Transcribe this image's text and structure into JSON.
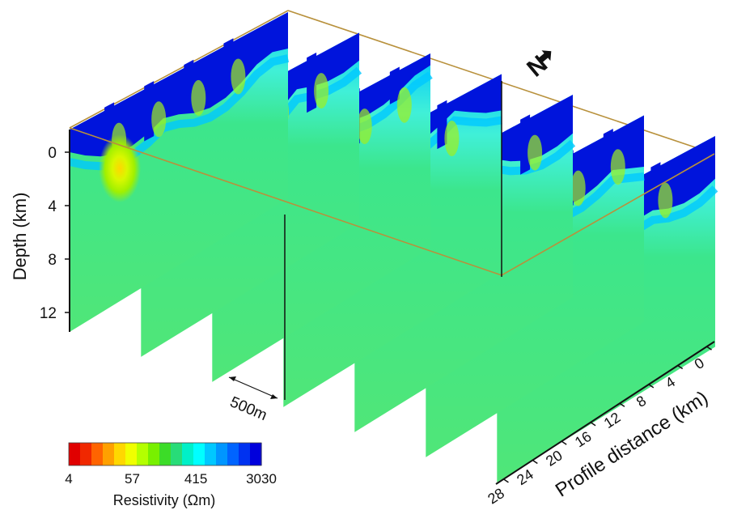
{
  "figure": {
    "north_label": "N",
    "depth_axis": {
      "label": "Depth (km)",
      "ticks": [
        "0",
        "4",
        "8",
        "12"
      ]
    },
    "profile_axis": {
      "label": "Profile distance (km)",
      "ticks": [
        "0",
        "4",
        "8",
        "12",
        "16",
        "20",
        "24",
        "28"
      ]
    },
    "scale_bar": {
      "label": "500m"
    },
    "colorbar": {
      "title": "Resistivity (Ωm)",
      "tick_labels": [
        "4",
        "57",
        "415",
        "3030"
      ],
      "colors": [
        "#e00000",
        "#f02800",
        "#ff6400",
        "#ffa000",
        "#ffd700",
        "#f0ff00",
        "#b4ff00",
        "#78f000",
        "#3cdc28",
        "#28dc78",
        "#00f0c8",
        "#00ffff",
        "#00c8ff",
        "#0096ff",
        "#0064ff",
        "#0032f0",
        "#0000dc"
      ]
    },
    "frame_color": "#b8913c",
    "section_colors": {
      "conductor_core": "#ffd700",
      "conductor_halo": "#a0f000",
      "background": "#3ce68c",
      "resistive_top": "#0014dc",
      "transition": "#00c8ff"
    },
    "profile_count": 7
  }
}
